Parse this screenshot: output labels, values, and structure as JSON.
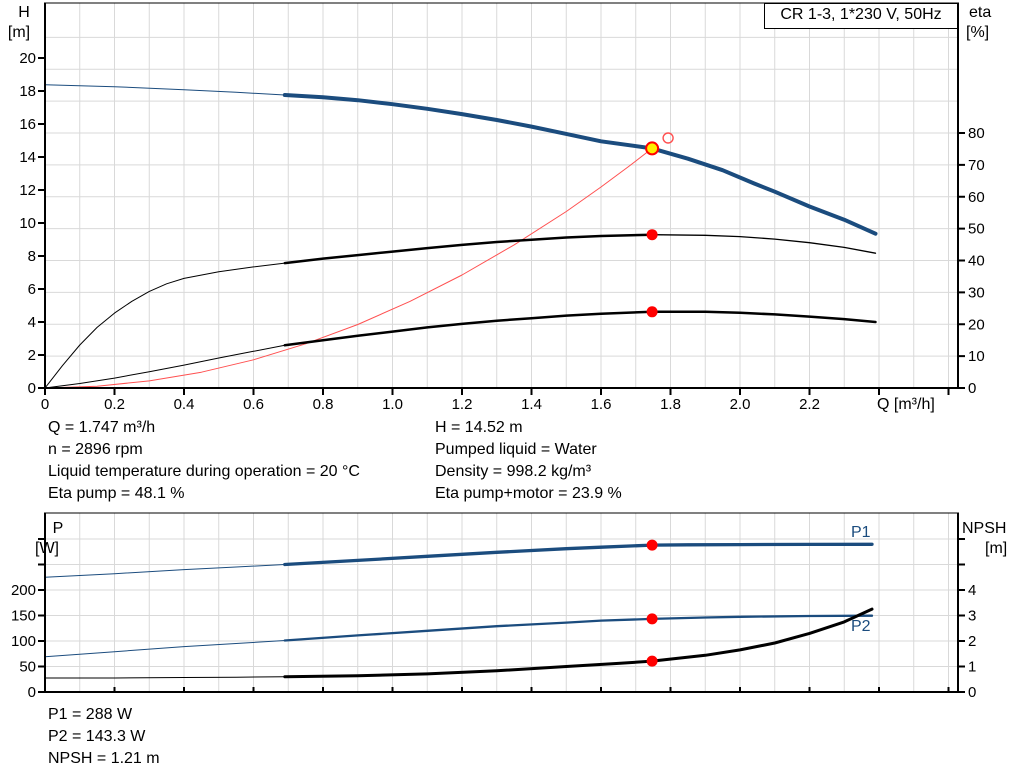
{
  "title_box": {
    "label": "CR 1-3, 1*230 V, 50Hz"
  },
  "top_chart": {
    "left_axis_title": "H",
    "left_axis_unit": "[m]",
    "right_axis_title": "eta",
    "right_axis_unit": "[%]",
    "x_axis_label": "Q [m³/h]"
  },
  "bottom_chart": {
    "left_axis_title": "P",
    "left_axis_unit": "[W]",
    "right_axis_title": "NPSH",
    "right_axis_unit": "[m]",
    "p1_label": "P1",
    "p2_label": "P2"
  },
  "info_top": {
    "left": [
      "Q = 1.747 m³/h",
      "n = 2896 rpm",
      "Liquid temperature during operation = 20 °C",
      "Eta pump = 48.1 %"
    ],
    "right": [
      "H = 14.52 m",
      "Pumped liquid = Water",
      "Density = 998.2 kg/m³",
      "Eta pump+motor = 23.9 %"
    ]
  },
  "info_bottom": [
    "P1 = 288 W",
    "P2 = 143.3 W",
    "NPSH = 1.21 m"
  ],
  "colors": {
    "curve_blue": "#1b4c7e",
    "curve_black": "#000000",
    "system_red": "#ff5050",
    "marker_red": "#ff0000",
    "duty_yellow": "#ffee00",
    "grid": "#d9d9d9",
    "axis": "#000000",
    "label_blue": "#1b4c7e"
  },
  "chart_data": [
    {
      "id": "top",
      "type": "line",
      "title": "CR 1-3, 1*230 V, 50Hz",
      "xlabel": "Q [m³/h]",
      "x_range": [
        0,
        2.63
      ],
      "x_grid_step": 0.1,
      "x_tick_labels": [
        "0",
        "0.2",
        "0.4",
        "0.6",
        "0.8",
        "1.0",
        "1.2",
        "1.4",
        "1.6",
        "1.8",
        "2.0",
        "2.2"
      ],
      "x_ticks_unlabeled": [
        2.4,
        2.6
      ],
      "left_axis": {
        "label": "H [m]",
        "range": [
          0,
          23.3
        ],
        "ticks": [
          0,
          2,
          4,
          6,
          8,
          10,
          12,
          14,
          16,
          18,
          20
        ],
        "ticks_unlabeled": []
      },
      "right_axis": {
        "label": "eta [%]",
        "range": [
          0,
          120
        ],
        "ticks": [
          0,
          10,
          20,
          30,
          40,
          50,
          60,
          70,
          80
        ],
        "ticks_unlabeled": []
      },
      "series": [
        {
          "name": "pump-curve",
          "axis": "H",
          "color": "blue",
          "segments": [
            {
              "width": 1,
              "points": [
                [
                  0,
                  18.38
                ],
                [
                  0.2,
                  18.26
                ],
                [
                  0.4,
                  18.08
                ],
                [
                  0.55,
                  17.92
                ],
                [
                  0.69,
                  17.76
                ]
              ]
            },
            {
              "width": 4,
              "points": [
                [
                  0.69,
                  17.76
                ],
                [
                  0.8,
                  17.62
                ],
                [
                  0.9,
                  17.44
                ],
                [
                  1.0,
                  17.2
                ],
                [
                  1.1,
                  16.92
                ],
                [
                  1.2,
                  16.6
                ],
                [
                  1.3,
                  16.24
                ],
                [
                  1.4,
                  15.84
                ],
                [
                  1.5,
                  15.4
                ],
                [
                  1.6,
                  14.95
                ],
                [
                  1.747,
                  14.52
                ],
                [
                  1.85,
                  13.9
                ],
                [
                  1.95,
                  13.2
                ],
                [
                  2.04,
                  12.4
                ],
                [
                  2.1,
                  11.9
                ],
                [
                  2.2,
                  11.0
                ],
                [
                  2.3,
                  10.2
                ],
                [
                  2.39,
                  9.35
                ]
              ]
            }
          ]
        },
        {
          "name": "system-curve",
          "axis": "H",
          "color": "red",
          "segments": [
            {
              "width": 1,
              "points": [
                [
                  0,
                  0
                ],
                [
                  0.15,
                  0.11
                ],
                [
                  0.3,
                  0.43
                ],
                [
                  0.45,
                  0.96
                ],
                [
                  0.6,
                  1.71
                ],
                [
                  0.75,
                  2.68
                ],
                [
                  0.9,
                  3.85
                ],
                [
                  1.05,
                  5.25
                ],
                [
                  1.2,
                  6.85
                ],
                [
                  1.35,
                  8.67
                ],
                [
                  1.5,
                  10.7
                ],
                [
                  1.6,
                  12.18
                ],
                [
                  1.68,
                  13.43
                ],
                [
                  1.747,
                  14.52
                ]
              ]
            }
          ]
        },
        {
          "name": "eta-pump-curve",
          "axis": "eta",
          "color": "black",
          "segments": [
            {
              "width": 1,
              "points": [
                [
                  0,
                  0
                ],
                [
                  0.05,
                  7
                ],
                [
                  0.1,
                  13.5
                ],
                [
                  0.15,
                  19
                ],
                [
                  0.2,
                  23.5
                ],
                [
                  0.25,
                  27.2
                ],
                [
                  0.3,
                  30.3
                ],
                [
                  0.35,
                  32.7
                ],
                [
                  0.4,
                  34.4
                ],
                [
                  0.5,
                  36.5
                ],
                [
                  0.6,
                  38
                ],
                [
                  0.69,
                  39.2
                ]
              ]
            },
            {
              "width": 2.5,
              "points": [
                [
                  0.69,
                  39.2
                ],
                [
                  0.8,
                  40.6
                ],
                [
                  0.9,
                  41.7
                ],
                [
                  1.0,
                  42.8
                ],
                [
                  1.1,
                  43.9
                ],
                [
                  1.2,
                  44.9
                ],
                [
                  1.3,
                  45.8
                ],
                [
                  1.4,
                  46.5
                ],
                [
                  1.5,
                  47.2
                ],
                [
                  1.6,
                  47.7
                ],
                [
                  1.747,
                  48.1
                ]
              ]
            },
            {
              "width": 1.3,
              "points": [
                [
                  1.747,
                  48.1
                ],
                [
                  1.9,
                  47.9
                ],
                [
                  2.0,
                  47.5
                ],
                [
                  2.1,
                  46.7
                ],
                [
                  2.2,
                  45.6
                ],
                [
                  2.3,
                  44.1
                ],
                [
                  2.39,
                  42.3
                ]
              ]
            }
          ]
        },
        {
          "name": "eta-pump-motor-curve",
          "axis": "eta",
          "color": "black",
          "segments": [
            {
              "width": 1,
              "points": [
                [
                  0,
                  0
                ],
                [
                  0.1,
                  1.4
                ],
                [
                  0.2,
                  3.1
                ],
                [
                  0.3,
                  5.1
                ],
                [
                  0.4,
                  7.2
                ],
                [
                  0.5,
                  9.4
                ],
                [
                  0.6,
                  11.5
                ],
                [
                  0.69,
                  13.4
                ]
              ]
            },
            {
              "width": 2.5,
              "points": [
                [
                  0.69,
                  13.4
                ],
                [
                  0.8,
                  15
                ],
                [
                  0.9,
                  16.4
                ],
                [
                  1.0,
                  17.7
                ],
                [
                  1.1,
                  19
                ],
                [
                  1.2,
                  20.1
                ],
                [
                  1.3,
                  21.1
                ],
                [
                  1.4,
                  21.9
                ],
                [
                  1.5,
                  22.7
                ],
                [
                  1.6,
                  23.3
                ],
                [
                  1.747,
                  23.9
                ],
                [
                  1.9,
                  23.9
                ],
                [
                  2.0,
                  23.6
                ],
                [
                  2.1,
                  23.1
                ],
                [
                  2.2,
                  22.4
                ],
                [
                  2.3,
                  21.6
                ],
                [
                  2.39,
                  20.7
                ]
              ]
            }
          ]
        }
      ],
      "markers": [
        {
          "name": "duty-point",
          "axis": "H",
          "q": 1.747,
          "value": 14.52,
          "style": "yellow-red-ring",
          "r": 6
        },
        {
          "name": "requested-duty-point",
          "axis": "H",
          "q": 1.793,
          "value": 15.15,
          "style": "open-red",
          "r": 5
        },
        {
          "name": "eta-pump-point",
          "axis": "eta",
          "q": 1.747,
          "value": 48.1,
          "style": "red-dot",
          "r": 5.5
        },
        {
          "name": "eta-pump-motor-point",
          "axis": "eta",
          "q": 1.747,
          "value": 23.9,
          "style": "red-dot",
          "r": 5.5
        }
      ]
    },
    {
      "id": "bottom",
      "type": "line",
      "title": "",
      "xlabel": "",
      "x_range": [
        0,
        2.63
      ],
      "x_grid_step": 0.1,
      "x_tick_labels": [],
      "x_ticks_unlabeled": [],
      "x_ticks_inside": [
        0.2,
        0.4,
        0.6,
        0.8,
        1.0,
        1.2,
        1.4,
        1.6,
        1.8,
        2.0,
        2.2,
        2.4,
        2.6
      ],
      "left_axis": {
        "label": "P [W]",
        "range": [
          0,
          351
        ],
        "ticks": [
          0,
          50,
          100,
          150,
          200
        ],
        "ticks_unlabeled": [
          250,
          300
        ]
      },
      "right_axis": {
        "label": "NPSH [m]",
        "range": [
          0,
          7
        ],
        "ticks": [
          0,
          1,
          2,
          3,
          4
        ],
        "ticks_unlabeled": [
          5,
          6
        ]
      },
      "series": [
        {
          "name": "p1-curve",
          "axis": "P",
          "color": "blue",
          "label": "P1",
          "segments": [
            {
              "width": 1,
              "points": [
                [
                  0,
                  225
                ],
                [
                  0.2,
                  232
                ],
                [
                  0.4,
                  240
                ],
                [
                  0.55,
                  245
                ],
                [
                  0.69,
                  250
                ]
              ]
            },
            {
              "width": 3.3,
              "points": [
                [
                  0.69,
                  250
                ],
                [
                  0.9,
                  258
                ],
                [
                  1.1,
                  266
                ],
                [
                  1.3,
                  274
                ],
                [
                  1.5,
                  281
                ],
                [
                  1.6,
                  284
                ],
                [
                  1.747,
                  288
                ],
                [
                  1.85,
                  288.7
                ],
                [
                  2.0,
                  289
                ],
                [
                  2.2,
                  289.4
                ],
                [
                  2.38,
                  289.6
                ]
              ]
            }
          ]
        },
        {
          "name": "p2-curve",
          "axis": "P",
          "color": "blue",
          "label": "P2",
          "segments": [
            {
              "width": 1,
              "points": [
                [
                  0,
                  69
                ],
                [
                  0.2,
                  79
                ],
                [
                  0.4,
                  89
                ],
                [
                  0.55,
                  95
                ],
                [
                  0.69,
                  101
                ]
              ]
            },
            {
              "width": 2.3,
              "points": [
                [
                  0.69,
                  101
                ],
                [
                  0.9,
                  111
                ],
                [
                  1.1,
                  120
                ],
                [
                  1.3,
                  129
                ],
                [
                  1.5,
                  136
                ],
                [
                  1.6,
                  140
                ],
                [
                  1.747,
                  143.3
                ],
                [
                  1.9,
                  146
                ],
                [
                  2.0,
                  147.5
                ],
                [
                  2.2,
                  149
                ],
                [
                  2.38,
                  149.6
                ]
              ]
            }
          ]
        },
        {
          "name": "npsh-curve",
          "axis": "NPSH",
          "color": "black",
          "segments": [
            {
              "width": 1,
              "points": [
                [
                  0,
                  0.55
                ],
                [
                  0.2,
                  0.55
                ],
                [
                  0.4,
                  0.57
                ],
                [
                  0.55,
                  0.58
                ],
                [
                  0.69,
                  0.6
                ]
              ]
            },
            {
              "width": 3,
              "points": [
                [
                  0.69,
                  0.6
                ],
                [
                  0.9,
                  0.64
                ],
                [
                  1.1,
                  0.71
                ],
                [
                  1.3,
                  0.83
                ],
                [
                  1.5,
                  1.0
                ],
                [
                  1.65,
                  1.12
                ],
                [
                  1.747,
                  1.21
                ],
                [
                  1.9,
                  1.44
                ],
                [
                  2.0,
                  1.65
                ],
                [
                  2.1,
                  1.92
                ],
                [
                  2.2,
                  2.3
                ],
                [
                  2.3,
                  2.75
                ],
                [
                  2.38,
                  3.25
                ]
              ]
            }
          ]
        }
      ],
      "markers": [
        {
          "name": "p1-point",
          "axis": "P",
          "q": 1.747,
          "value": 288,
          "style": "red-dot",
          "r": 5.5
        },
        {
          "name": "p2-point",
          "axis": "P",
          "q": 1.747,
          "value": 143.3,
          "style": "red-dot",
          "r": 5.5
        },
        {
          "name": "npsh-point",
          "axis": "NPSH",
          "q": 1.747,
          "value": 1.21,
          "style": "red-dot",
          "r": 5.5
        }
      ]
    }
  ]
}
